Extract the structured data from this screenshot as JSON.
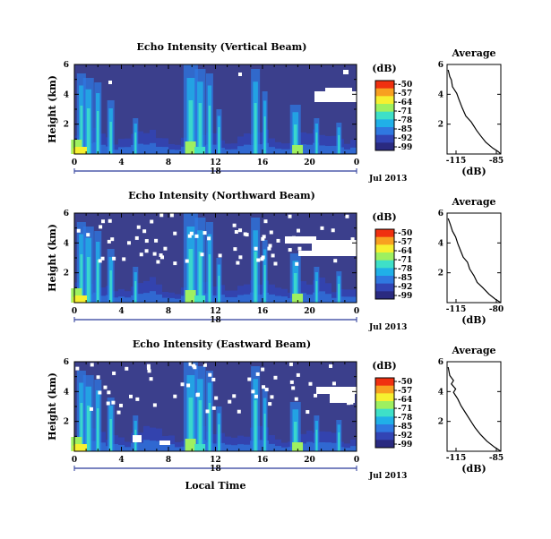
{
  "chart_data": [
    {
      "type": "heatmap",
      "title": "Echo Intensity (Vertical Beam)",
      "xlabel": "",
      "ylabel": "Height (km)",
      "x_ticks": [
        "0",
        "4",
        "8",
        "12",
        "16",
        "20",
        "0"
      ],
      "x_range_hours": [
        0,
        24
      ],
      "date_label": "Jul 2013",
      "day_label": "18",
      "y_ticks": [
        "6",
        "4",
        "2"
      ],
      "ylim": [
        0,
        6
      ],
      "colorbar": {
        "unit": "(dB)",
        "ticks": [
          "-50",
          "-57",
          "-64",
          "-71",
          "-78",
          "-85",
          "-92",
          "-99"
        ]
      },
      "profile": {
        "title": "Average",
        "xlabel": "(dB)",
        "x_ticks": [
          "-115",
          "-85"
        ],
        "y_ticks": [
          "6",
          "4",
          "2"
        ],
        "xlim": [
          -115,
          -85
        ]
      }
    },
    {
      "type": "heatmap",
      "title": "Echo Intensity (Northward Beam)",
      "xlabel": "",
      "ylabel": "Height (km)",
      "x_ticks": [
        "0",
        "4",
        "8",
        "12",
        "16",
        "20",
        "0"
      ],
      "x_range_hours": [
        0,
        24
      ],
      "date_label": "Jul 2013",
      "day_label": "18",
      "y_ticks": [
        "6",
        "4",
        "2"
      ],
      "ylim": [
        0,
        6
      ],
      "colorbar": {
        "unit": "(dB)",
        "ticks": [
          "-50",
          "-57",
          "-64",
          "-71",
          "-78",
          "-85",
          "-92",
          "-99"
        ]
      },
      "profile": {
        "title": "Average",
        "xlabel": "(dB)",
        "x_ticks": [
          "-115",
          "-80"
        ],
        "y_ticks": [
          "6",
          "4",
          "2"
        ],
        "xlim": [
          -115,
          -80
        ]
      }
    },
    {
      "type": "heatmap",
      "title": "Echo Intensity (Eastward Beam)",
      "xlabel": "Local Time",
      "ylabel": "Height (km)",
      "x_ticks": [
        "0",
        "4",
        "8",
        "12",
        "16",
        "20",
        "0"
      ],
      "x_range_hours": [
        0,
        24
      ],
      "date_label": "Jul 2013",
      "day_label": "18",
      "y_ticks": [
        "6",
        "4",
        "2"
      ],
      "ylim": [
        0,
        6
      ],
      "colorbar": {
        "unit": "(dB)",
        "ticks": [
          "-50",
          "-57",
          "-64",
          "-71",
          "-78",
          "-85",
          "-92",
          "-99"
        ]
      },
      "profile": {
        "title": "Average",
        "xlabel": "(dB)",
        "x_ticks": [
          "-115",
          "-85"
        ],
        "y_ticks": [
          "6",
          "4",
          "2"
        ],
        "xlim": [
          -115,
          -85
        ]
      }
    }
  ],
  "colors": {
    "background_fill": "#3b3f8c",
    "missing_data": "#ffffff",
    "colormap": [
      "#2a2a80",
      "#3244b4",
      "#2f78e0",
      "#20b0e8",
      "#3ee0c8",
      "#9ef060",
      "#f6f030",
      "#f8a020",
      "#f03010"
    ]
  }
}
